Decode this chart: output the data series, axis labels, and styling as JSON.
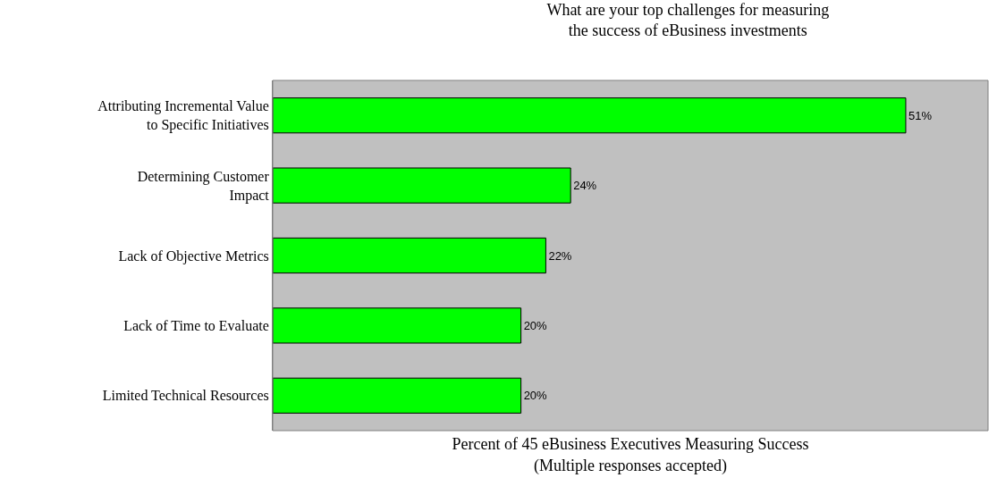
{
  "chart_data": {
    "type": "bar",
    "orientation": "horizontal",
    "title": "What are your top challenges for measuring\nthe success of eBusiness investments",
    "xlabel": "Percent of 45 eBusiness Executives Measuring Success\n(Multiple responses accepted)",
    "categories": [
      "Attributing Incremental Value\nto Specific Initiatives",
      "Determining Customer\nImpact",
      "Lack of Objective Metrics",
      "Lack of Time to Evaluate",
      "Limited Technical Resources"
    ],
    "values": [
      51,
      24,
      22,
      20,
      20
    ],
    "value_labels": [
      "51%",
      "24%",
      "22%",
      "20%",
      "20%"
    ],
    "color": "#00ff00",
    "grid": false,
    "legend": false
  }
}
